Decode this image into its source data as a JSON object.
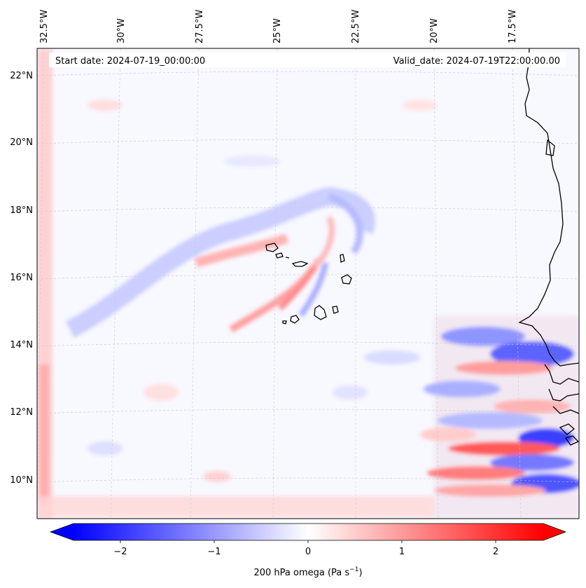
{
  "header": {
    "start_date": "Start date: 2024-07-19_00:00:00",
    "valid_date": "Valid_date: 2024-07-19T22:00:00.00"
  },
  "map": {
    "longitude_labels": [
      "32.5°W",
      "30°W",
      "27.5°W",
      "25°W",
      "22.5°W",
      "20°W",
      "17.5°W"
    ],
    "latitude_labels": [
      "22°N",
      "20°N",
      "18°N",
      "16°N",
      "14°N",
      "12°N",
      "10°N"
    ],
    "extent": {
      "lon_min": -33.0,
      "lon_max": -15.6,
      "lat_min": 8.9,
      "lat_max": 22.8
    },
    "field": "200 hPa omega",
    "colormap": "bwr",
    "coastline_color": "#000000"
  },
  "colorbar": {
    "tick_labels": [
      "−2",
      "−1",
      "0",
      "1",
      "2"
    ],
    "ticks": [
      -2,
      -1,
      0,
      1,
      2
    ],
    "range": [
      -2.5,
      2.5
    ],
    "extend": "both",
    "label": "200 hPa omega (Pa s",
    "label_exp": "−1",
    "label_close": ")",
    "min_color": "#0000ff",
    "mid_color": "#ffffff",
    "max_color": "#ff0000"
  }
}
